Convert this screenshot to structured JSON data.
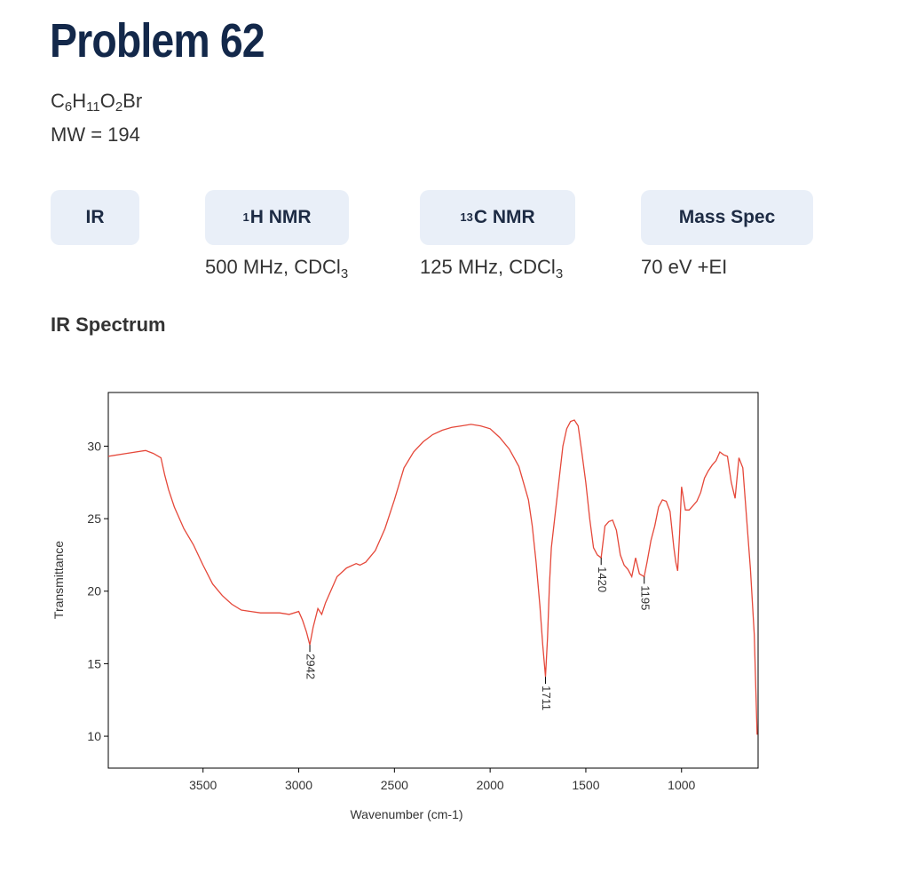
{
  "header": {
    "title": "Problem 62",
    "formula": [
      {
        "el": "C",
        "n": "6"
      },
      {
        "el": "H",
        "n": "11"
      },
      {
        "el": "O",
        "n": "2"
      },
      {
        "el": "Br",
        "n": ""
      }
    ],
    "mw": "MW = 194"
  },
  "tabs": [
    {
      "label": "IR",
      "sup": "",
      "subtitle": ""
    },
    {
      "label": "H NMR",
      "sup": "1",
      "subtitle": "500 MHz, CDCl",
      "subtitle_sub": "3"
    },
    {
      "label": "C NMR",
      "sup": "13",
      "subtitle": "125 MHz, CDCl",
      "subtitle_sub": "3"
    },
    {
      "label": "Mass Spec",
      "sup": "",
      "subtitle": "70 eV +EI",
      "subtitle_sub": ""
    }
  ],
  "section_title": "IR Spectrum",
  "colors": {
    "title": "#13284a",
    "tab_bg": "#e9eff8",
    "spectrum_line": "#e5483a",
    "axis": "#000000"
  },
  "chart_data": {
    "type": "line",
    "xlabel": "Wavenumber (cm-1)",
    "ylabel": "Transmittance",
    "xlim": [
      3995,
      600
    ],
    "ylim": [
      7.8,
      33.7
    ],
    "x_reversed": true,
    "xticks": [
      3500,
      3000,
      2500,
      2000,
      1500,
      1000
    ],
    "yticks": [
      10,
      15,
      20,
      25,
      30
    ],
    "grid": false,
    "series": [
      {
        "x": [
          3995,
          3900,
          3800,
          3760,
          3720,
          3700,
          3680,
          3650,
          3600,
          3550,
          3500,
          3450,
          3400,
          3350,
          3300,
          3250,
          3200,
          3150,
          3100,
          3050,
          3000,
          2980,
          2960,
          2942,
          2925,
          2900,
          2880,
          2860,
          2850,
          2800,
          2750,
          2700,
          2680,
          2650,
          2600,
          2550,
          2500,
          2450,
          2400,
          2350,
          2300,
          2250,
          2200,
          2150,
          2100,
          2050,
          2000,
          1950,
          1900,
          1850,
          1800,
          1780,
          1760,
          1740,
          1725,
          1711,
          1700,
          1690,
          1680,
          1650,
          1620,
          1600,
          1580,
          1560,
          1540,
          1520,
          1500,
          1480,
          1460,
          1440,
          1420,
          1400,
          1380,
          1360,
          1340,
          1320,
          1300,
          1280,
          1260,
          1240,
          1220,
          1195,
          1180,
          1160,
          1140,
          1120,
          1100,
          1080,
          1060,
          1040,
          1030,
          1020,
          1010,
          1000,
          980,
          960,
          940,
          920,
          900,
          880,
          860,
          840,
          820,
          800,
          780,
          760,
          740,
          720,
          700,
          680,
          660,
          640,
          620,
          605
        ],
        "y": [
          29.3,
          29.5,
          29.7,
          29.5,
          29.2,
          28.0,
          27.0,
          25.8,
          24.3,
          23.2,
          21.8,
          20.5,
          19.7,
          19.1,
          18.7,
          18.6,
          18.5,
          18.5,
          18.5,
          18.4,
          18.6,
          18.0,
          17.2,
          16.3,
          17.5,
          18.8,
          18.4,
          19.2,
          19.5,
          21.0,
          21.6,
          21.9,
          21.8,
          22.0,
          22.8,
          24.3,
          26.3,
          28.5,
          29.6,
          30.3,
          30.8,
          31.1,
          31.3,
          31.4,
          31.5,
          31.4,
          31.2,
          30.6,
          29.8,
          28.6,
          26.3,
          24.5,
          22.0,
          19.0,
          16.3,
          14.1,
          16.8,
          20.5,
          23.0,
          26.5,
          30.0,
          31.2,
          31.7,
          31.8,
          31.4,
          29.5,
          27.5,
          25.0,
          23.0,
          22.5,
          22.3,
          24.5,
          24.8,
          24.9,
          24.2,
          22.5,
          21.8,
          21.5,
          21.0,
          22.3,
          21.2,
          21.0,
          22.0,
          23.5,
          24.5,
          25.8,
          26.3,
          26.2,
          25.5,
          23.0,
          22.0,
          21.4,
          24.0,
          27.2,
          25.6,
          25.6,
          25.9,
          26.2,
          26.8,
          27.8,
          28.3,
          28.7,
          29.0,
          29.6,
          29.4,
          29.3,
          27.5,
          26.4,
          29.2,
          28.5,
          25.0,
          21.5,
          17.0,
          10.1
        ]
      }
    ],
    "annotations": [
      {
        "label": "2942",
        "x": 2942,
        "y": 16.3
      },
      {
        "label": "1711",
        "x": 1711,
        "y": 14.1
      },
      {
        "label": "1420",
        "x": 1420,
        "y": 22.3
      },
      {
        "label": "1195",
        "x": 1195,
        "y": 21.0
      }
    ]
  }
}
